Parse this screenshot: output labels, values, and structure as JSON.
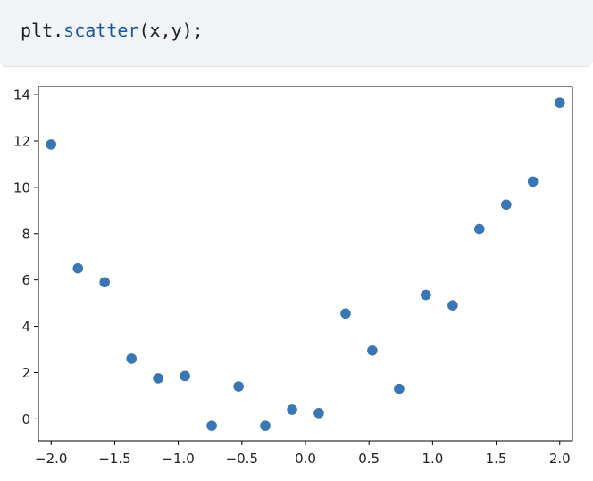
{
  "code_cell": {
    "object": "plt",
    "dot": ".",
    "function": "scatter",
    "args": "(x,y);"
  },
  "chart_data": {
    "type": "scatter",
    "title": "",
    "xlabel": "",
    "ylabel": "",
    "xlim": [
      -2.1,
      2.1
    ],
    "ylim": [
      -0.95,
      14.35
    ],
    "xticks": [
      -2.0,
      -1.5,
      -1.0,
      -0.5,
      0.0,
      0.5,
      1.0,
      1.5,
      2.0
    ],
    "xtick_labels": [
      "−2.0",
      "−1.5",
      "−1.0",
      "−0.5",
      "0.0",
      "0.5",
      "1.0",
      "1.5",
      "2.0"
    ],
    "yticks": [
      0,
      2,
      4,
      6,
      8,
      10,
      12,
      14
    ],
    "ytick_labels": [
      "0",
      "2",
      "4",
      "6",
      "8",
      "10",
      "12",
      "14"
    ],
    "grid": false,
    "marker_color": "#3a76b4",
    "x": [
      -2.0,
      -1.789,
      -1.579,
      -1.368,
      -1.158,
      -0.947,
      -0.737,
      -0.526,
      -0.316,
      -0.105,
      0.105,
      0.316,
      0.526,
      0.737,
      0.947,
      1.158,
      1.368,
      1.579,
      1.789,
      2.0
    ],
    "y": [
      11.85,
      6.5,
      5.9,
      2.6,
      1.75,
      1.85,
      -0.3,
      1.4,
      -0.3,
      0.4,
      0.25,
      4.55,
      2.95,
      1.3,
      5.35,
      4.9,
      8.2,
      9.25,
      10.25,
      13.65
    ]
  }
}
